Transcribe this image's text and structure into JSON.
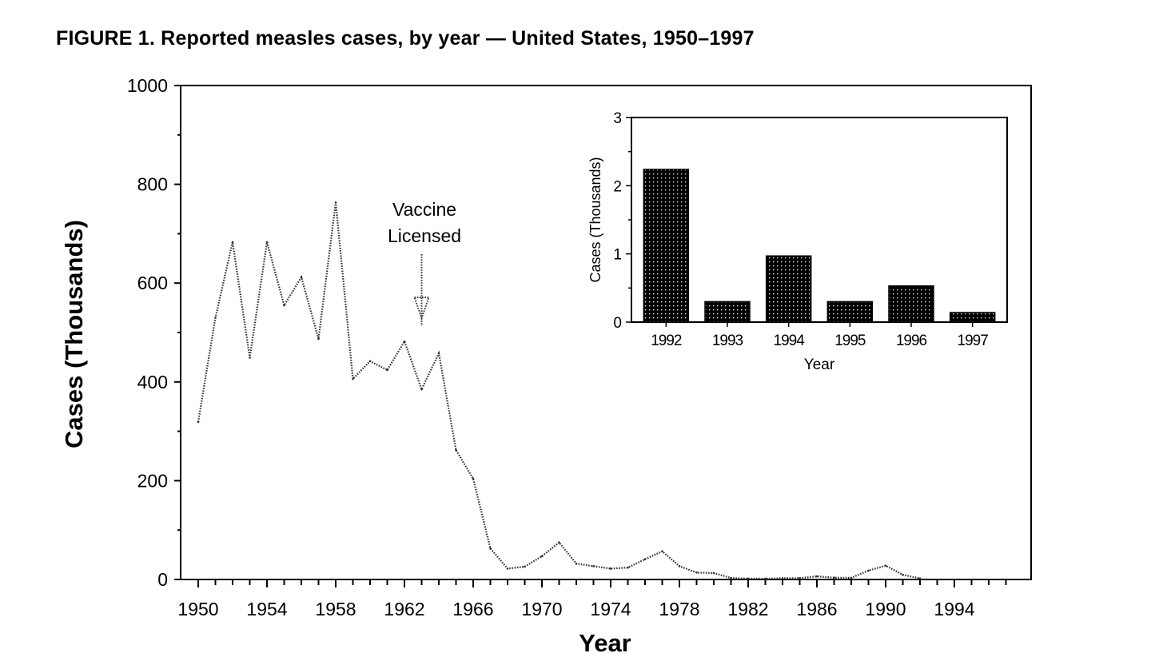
{
  "chart_data": [
    {
      "type": "line",
      "title": "FIGURE 1. Reported measles cases, by year — United States, 1950–1997",
      "xlabel": "Year",
      "ylabel": "Cases (Thousands)",
      "xlim": [
        1949,
        1998.5
      ],
      "ylim": [
        0,
        1000
      ],
      "xticks": [
        1950,
        1954,
        1958,
        1962,
        1966,
        1970,
        1974,
        1978,
        1982,
        1986,
        1990,
        1994
      ],
      "yticks": [
        0,
        200,
        400,
        600,
        800,
        1000
      ],
      "grid": false,
      "line_color": "#333333",
      "line_style": "dotted",
      "x": [
        1950,
        1951,
        1952,
        1953,
        1954,
        1955,
        1956,
        1957,
        1958,
        1959,
        1960,
        1961,
        1962,
        1963,
        1964,
        1965,
        1966,
        1967,
        1968,
        1969,
        1970,
        1971,
        1972,
        1973,
        1974,
        1975,
        1976,
        1977,
        1978,
        1979,
        1980,
        1981,
        1982,
        1983,
        1984,
        1985,
        1986,
        1987,
        1988,
        1989,
        1990,
        1991,
        1992
      ],
      "y": [
        319,
        530,
        683,
        449,
        683,
        555,
        612,
        487,
        763,
        406,
        442,
        424,
        482,
        385,
        458,
        262,
        204,
        63,
        22,
        26,
        47,
        75,
        32,
        27,
        22,
        24,
        41,
        57,
        27,
        14,
        13,
        3,
        1.7,
        1.5,
        2.6,
        2.8,
        6.3,
        3.7,
        3.4,
        18,
        28,
        9.6,
        2.2
      ],
      "annotation": {
        "text_lines": [
          "Vaccine",
          "Licensed"
        ],
        "year": 1963,
        "arrow": "down"
      }
    },
    {
      "type": "bar",
      "inset": true,
      "xlabel": "Year",
      "ylabel": "Cases (Thousands)",
      "ylim": [
        0,
        3
      ],
      "yticks": [
        0,
        1,
        2,
        3
      ],
      "categories": [
        "1992",
        "1993",
        "1994",
        "1995",
        "1996",
        "1997"
      ],
      "values": [
        2.24,
        0.3,
        0.97,
        0.3,
        0.53,
        0.14
      ],
      "bar_color": "#000000",
      "bar_pattern": "dotted"
    }
  ]
}
